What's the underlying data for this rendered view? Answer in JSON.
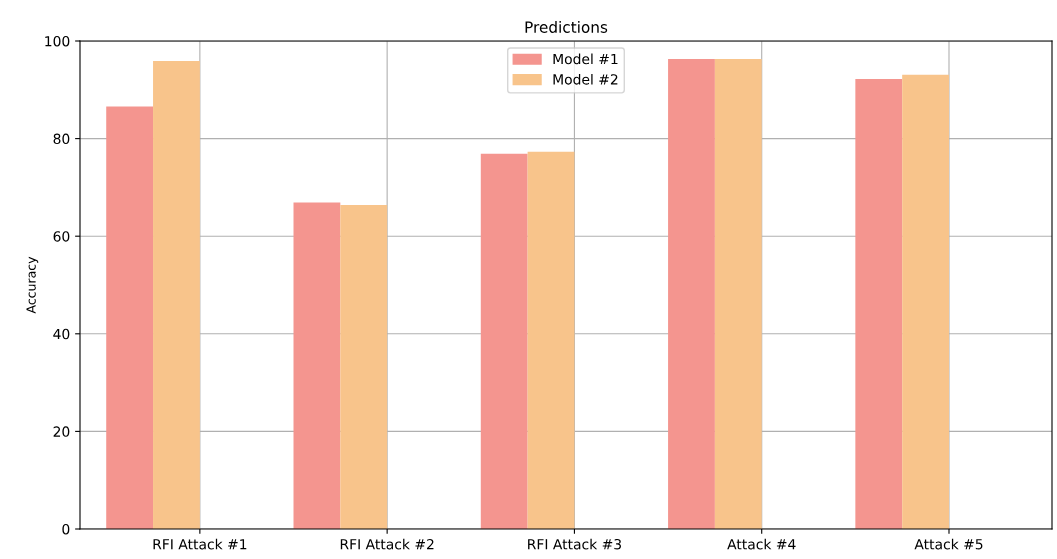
{
  "chart_data": {
    "type": "bar",
    "title": "Predictions",
    "ylabel": "Accuracy",
    "categories": [
      "RFI Attack #1",
      "RFI Attack #2",
      "RFI Attack #3",
      "Attack #4",
      "Attack #5"
    ],
    "series": [
      {
        "name": "Model #1",
        "color": "#f4958f",
        "values": [
          86.6,
          66.9,
          76.9,
          96.3,
          92.2
        ]
      },
      {
        "name": "Model #2",
        "color": "#f8c48b",
        "values": [
          95.9,
          66.4,
          77.3,
          96.3,
          93.1
        ]
      }
    ],
    "ylim": [
      0,
      100
    ],
    "yticks": [
      0,
      20,
      40,
      60,
      80,
      100
    ],
    "grid": true,
    "legend": "top"
  }
}
